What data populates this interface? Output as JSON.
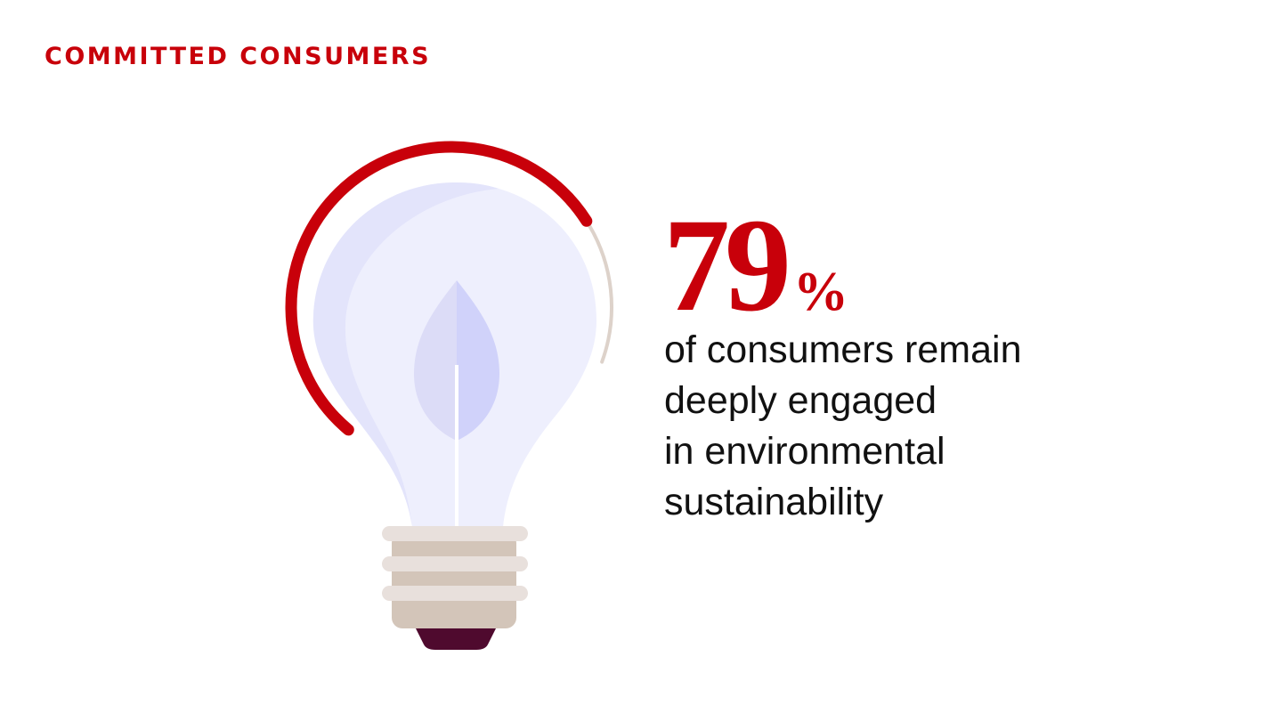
{
  "header": {
    "title": "COMMITTED CONSUMERS"
  },
  "stat": {
    "value": 79,
    "unit": "%",
    "text_lines": [
      "of consumers remain",
      "deeply engaged",
      "in environmental",
      "sustainability"
    ]
  }
}
